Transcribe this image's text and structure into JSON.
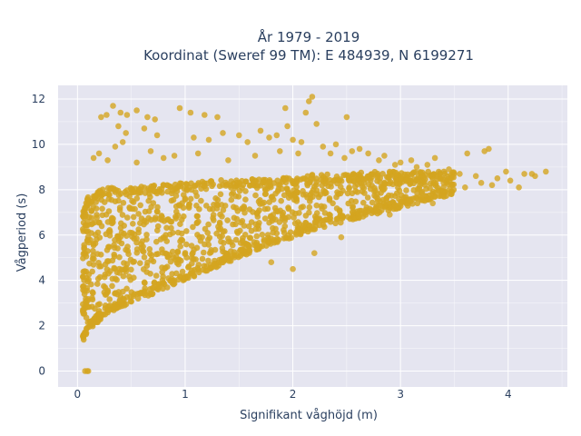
{
  "chart_data": {
    "type": "scatter",
    "title_line1": "År 1979 - 2019",
    "title_line2": "Koordinat (Sweref 99 TM): E 484939, N 6199271",
    "xlabel": "Signifikant våghöjd (m)",
    "ylabel": "Vågperiod (s)",
    "xlim": [
      -0.18,
      4.55
    ],
    "ylim": [
      -0.7,
      12.6
    ],
    "x_ticks": [
      "0",
      "1",
      "2",
      "3",
      "4"
    ],
    "y_ticks": [
      "0",
      "2",
      "4",
      "6",
      "8",
      "10",
      "12"
    ],
    "grid": true,
    "marker_color": "#d4a520",
    "background_color": "#e5e5f0",
    "density_envelope": {
      "x": [
        0.05,
        0.1,
        0.2,
        0.3,
        0.5,
        0.75,
        1.0,
        1.25,
        1.5,
        1.75,
        2.0,
        2.25,
        2.5,
        2.75,
        3.0,
        3.25,
        3.5
      ],
      "y_lower": [
        1.3,
        1.8,
        2.2,
        2.6,
        3.0,
        3.5,
        4.0,
        4.5,
        5.0,
        5.5,
        5.9,
        6.3,
        6.6,
        6.9,
        7.2,
        7.5,
        7.8
      ],
      "y_upper": [
        7.0,
        7.7,
        8.0,
        8.1,
        8.1,
        8.2,
        8.3,
        8.4,
        8.5,
        8.5,
        8.6,
        8.7,
        8.7,
        8.8,
        8.8,
        8.8,
        8.8
      ]
    },
    "outlier_points": [
      {
        "x": 0.07,
        "y": 0.0
      },
      {
        "x": 0.09,
        "y": 0.0
      },
      {
        "x": 0.1,
        "y": 0.0
      },
      {
        "x": 0.22,
        "y": 11.2
      },
      {
        "x": 0.27,
        "y": 11.3
      },
      {
        "x": 0.33,
        "y": 11.7
      },
      {
        "x": 0.4,
        "y": 11.4
      },
      {
        "x": 0.46,
        "y": 11.3
      },
      {
        "x": 0.55,
        "y": 11.5
      },
      {
        "x": 0.65,
        "y": 11.2
      },
      {
        "x": 0.72,
        "y": 11.1
      },
      {
        "x": 0.38,
        "y": 10.8
      },
      {
        "x": 0.45,
        "y": 10.5
      },
      {
        "x": 0.62,
        "y": 10.7
      },
      {
        "x": 0.74,
        "y": 10.4
      },
      {
        "x": 0.95,
        "y": 11.6
      },
      {
        "x": 1.05,
        "y": 11.4
      },
      {
        "x": 1.18,
        "y": 11.3
      },
      {
        "x": 1.3,
        "y": 11.2
      },
      {
        "x": 1.08,
        "y": 10.3
      },
      {
        "x": 1.22,
        "y": 10.2
      },
      {
        "x": 1.35,
        "y": 10.5
      },
      {
        "x": 1.5,
        "y": 10.4
      },
      {
        "x": 1.58,
        "y": 10.1
      },
      {
        "x": 1.7,
        "y": 10.6
      },
      {
        "x": 1.78,
        "y": 10.3
      },
      {
        "x": 1.85,
        "y": 10.4
      },
      {
        "x": 1.93,
        "y": 11.6
      },
      {
        "x": 1.95,
        "y": 10.8
      },
      {
        "x": 2.0,
        "y": 10.2
      },
      {
        "x": 2.08,
        "y": 10.1
      },
      {
        "x": 2.12,
        "y": 11.4
      },
      {
        "x": 2.15,
        "y": 11.9
      },
      {
        "x": 2.18,
        "y": 12.1
      },
      {
        "x": 2.22,
        "y": 10.9
      },
      {
        "x": 2.28,
        "y": 9.9
      },
      {
        "x": 2.35,
        "y": 9.6
      },
      {
        "x": 2.48,
        "y": 9.4
      },
      {
        "x": 2.5,
        "y": 11.2
      },
      {
        "x": 2.62,
        "y": 9.8
      },
      {
        "x": 2.7,
        "y": 9.6
      },
      {
        "x": 2.8,
        "y": 9.3
      },
      {
        "x": 2.95,
        "y": 9.1
      },
      {
        "x": 3.0,
        "y": 9.2
      },
      {
        "x": 3.15,
        "y": 9.0
      },
      {
        "x": 3.25,
        "y": 9.1
      },
      {
        "x": 3.32,
        "y": 9.4
      },
      {
        "x": 3.45,
        "y": 8.9
      },
      {
        "x": 3.55,
        "y": 8.7
      },
      {
        "x": 3.62,
        "y": 9.6
      },
      {
        "x": 3.7,
        "y": 8.6
      },
      {
        "x": 3.75,
        "y": 8.3
      },
      {
        "x": 3.78,
        "y": 9.7
      },
      {
        "x": 3.82,
        "y": 9.8
      },
      {
        "x": 3.85,
        "y": 8.2
      },
      {
        "x": 3.9,
        "y": 8.5
      },
      {
        "x": 3.98,
        "y": 8.8
      },
      {
        "x": 4.02,
        "y": 8.4
      },
      {
        "x": 4.1,
        "y": 8.1
      },
      {
        "x": 4.15,
        "y": 8.7
      },
      {
        "x": 4.22,
        "y": 8.7
      },
      {
        "x": 4.25,
        "y": 8.6
      },
      {
        "x": 4.35,
        "y": 8.8
      },
      {
        "x": 3.6,
        "y": 8.1
      },
      {
        "x": 3.48,
        "y": 8.2
      },
      {
        "x": 3.4,
        "y": 8.3
      },
      {
        "x": 0.15,
        "y": 9.4
      },
      {
        "x": 0.2,
        "y": 9.6
      },
      {
        "x": 0.28,
        "y": 9.3
      },
      {
        "x": 0.35,
        "y": 9.9
      },
      {
        "x": 0.42,
        "y": 10.1
      },
      {
        "x": 0.55,
        "y": 9.2
      },
      {
        "x": 0.68,
        "y": 9.7
      },
      {
        "x": 0.8,
        "y": 9.4
      },
      {
        "x": 0.9,
        "y": 9.5
      },
      {
        "x": 1.12,
        "y": 9.6
      },
      {
        "x": 1.4,
        "y": 9.3
      },
      {
        "x": 1.65,
        "y": 9.5
      },
      {
        "x": 1.88,
        "y": 9.7
      },
      {
        "x": 2.05,
        "y": 9.6
      },
      {
        "x": 2.4,
        "y": 10.0
      },
      {
        "x": 2.55,
        "y": 9.7
      },
      {
        "x": 2.85,
        "y": 9.5
      },
      {
        "x": 3.1,
        "y": 9.3
      },
      {
        "x": 2.0,
        "y": 4.5
      },
      {
        "x": 2.2,
        "y": 5.2
      },
      {
        "x": 2.45,
        "y": 5.9
      },
      {
        "x": 1.8,
        "y": 4.8
      },
      {
        "x": 2.9,
        "y": 6.9
      },
      {
        "x": 3.3,
        "y": 7.4
      }
    ]
  }
}
